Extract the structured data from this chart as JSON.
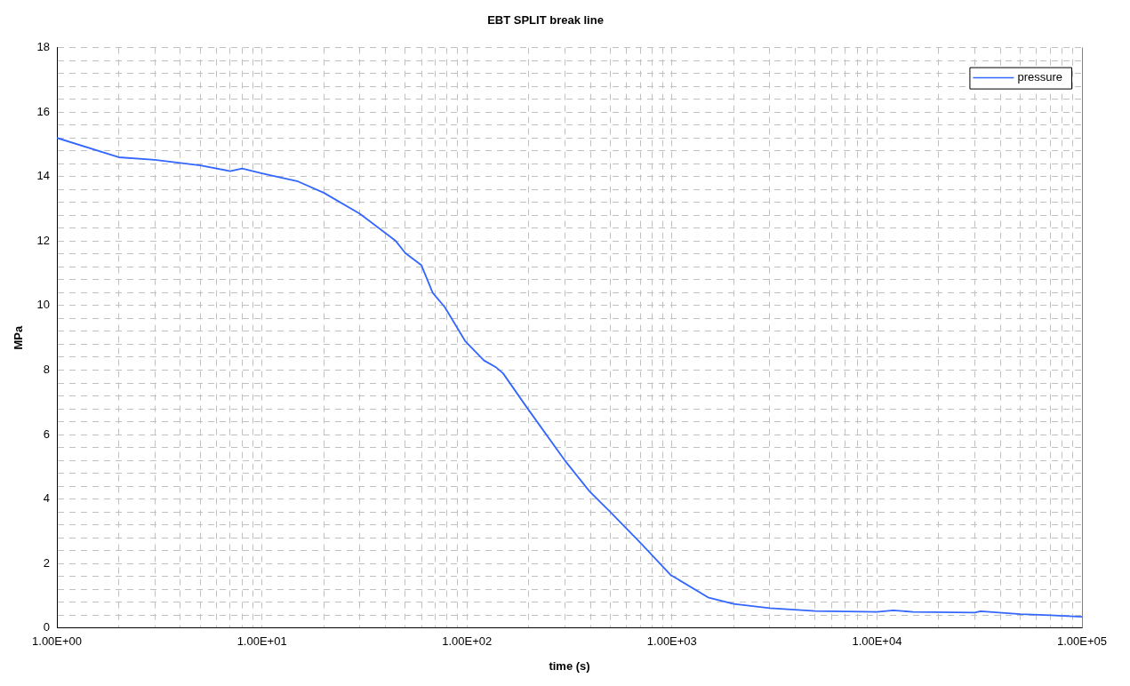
{
  "chart_data": {
    "type": "line",
    "title": "EBT SPLIT break line",
    "xlabel": "time (s)",
    "ylabel": "MPa",
    "log": "x",
    "grid": true,
    "legend": "top right",
    "marker": "none",
    "line_style": "solid",
    "xlim": [
      1,
      100000
    ],
    "xticks": [
      {
        "value": 1,
        "label": "1.00E+00"
      },
      {
        "value": 2,
        "label": null
      },
      {
        "value": 3,
        "label": null
      },
      {
        "value": 4,
        "label": null
      },
      {
        "value": 5,
        "label": null
      },
      {
        "value": 6,
        "label": null
      },
      {
        "value": 7,
        "label": null
      },
      {
        "value": 8,
        "label": null
      },
      {
        "value": 9,
        "label": null
      },
      {
        "value": 10,
        "label": "1.00E+01"
      },
      {
        "value": 20,
        "label": null
      },
      {
        "value": 30,
        "label": null
      },
      {
        "value": 40,
        "label": null
      },
      {
        "value": 50,
        "label": null
      },
      {
        "value": 60,
        "label": null
      },
      {
        "value": 70,
        "label": null
      },
      {
        "value": 80,
        "label": null
      },
      {
        "value": 90,
        "label": null
      },
      {
        "value": 100,
        "label": "1.00E+02"
      },
      {
        "value": 200,
        "label": null
      },
      {
        "value": 300,
        "label": null
      },
      {
        "value": 400,
        "label": null
      },
      {
        "value": 500,
        "label": null
      },
      {
        "value": 600,
        "label": null
      },
      {
        "value": 700,
        "label": null
      },
      {
        "value": 800,
        "label": null
      },
      {
        "value": 900,
        "label": null
      },
      {
        "value": 1000,
        "label": "1.00E+03"
      },
      {
        "value": 2000,
        "label": null
      },
      {
        "value": 3000,
        "label": null
      },
      {
        "value": 4000,
        "label": null
      },
      {
        "value": 5000,
        "label": null
      },
      {
        "value": 6000,
        "label": null
      },
      {
        "value": 7000,
        "label": null
      },
      {
        "value": 8000,
        "label": null
      },
      {
        "value": 9000,
        "label": null
      },
      {
        "value": 10000,
        "label": "1.00E+04"
      },
      {
        "value": 20000,
        "label": null
      },
      {
        "value": 30000,
        "label": null
      },
      {
        "value": 40000,
        "label": null
      },
      {
        "value": 50000,
        "label": null
      },
      {
        "value": 60000,
        "label": null
      },
      {
        "value": 70000,
        "label": null
      },
      {
        "value": 80000,
        "label": null
      },
      {
        "value": 90000,
        "label": null
      },
      {
        "value": 100000,
        "label": "1.00E+05"
      }
    ],
    "ylim": [
      0,
      18
    ],
    "yticks": [
      0,
      {
        "value": 0.4,
        "label": null
      },
      {
        "value": 0.8,
        "label": null
      },
      {
        "value": 1.2,
        "label": null
      },
      {
        "value": 1.6,
        "label": null
      },
      2,
      {
        "value": 2.4,
        "label": null
      },
      {
        "value": 2.8,
        "label": null
      },
      {
        "value": 3.2,
        "label": null
      },
      {
        "value": 3.6,
        "label": null
      },
      4,
      {
        "value": 4.4,
        "label": null
      },
      {
        "value": 4.8,
        "label": null
      },
      {
        "value": 5.2,
        "label": null
      },
      {
        "value": 5.6,
        "label": null
      },
      6,
      {
        "value": 6.4,
        "label": null
      },
      {
        "value": 6.8,
        "label": null
      },
      {
        "value": 7.2,
        "label": null
      },
      {
        "value": 7.6,
        "label": null
      },
      8,
      {
        "value": 8.4,
        "label": null
      },
      {
        "value": 8.8,
        "label": null
      },
      {
        "value": 9.2,
        "label": null
      },
      {
        "value": 9.6,
        "label": null
      },
      10,
      {
        "value": 10.4,
        "label": null
      },
      {
        "value": 10.8,
        "label": null
      },
      {
        "value": 11.2,
        "label": null
      },
      {
        "value": 11.6,
        "label": null
      },
      12,
      {
        "value": 12.4,
        "label": null
      },
      {
        "value": 12.8,
        "label": null
      },
      {
        "value": 13.2,
        "label": null
      },
      {
        "value": 13.6,
        "label": null
      },
      14,
      {
        "value": 14.4,
        "label": null
      },
      {
        "value": 14.8,
        "label": null
      },
      {
        "value": 15.2,
        "label": null
      },
      {
        "value": 15.6,
        "label": null
      },
      16,
      {
        "value": 16.4,
        "label": null
      },
      {
        "value": 16.8,
        "label": null
      },
      {
        "value": 17.2,
        "label": null
      },
      {
        "value": 17.6,
        "label": null
      },
      18
    ],
    "x": [
      1,
      2,
      3,
      5,
      7,
      8,
      10,
      15,
      20,
      30,
      40,
      45,
      50,
      60,
      68,
      78,
      98,
      121,
      139,
      150,
      194,
      300,
      395,
      500,
      700,
      984,
      1500,
      2000,
      3000,
      5000,
      10000,
      12000,
      15000,
      30000,
      32000,
      50000,
      70000,
      100000
    ],
    "series": [
      {
        "name": "pressure",
        "color": "#3366ff",
        "values": [
          15.2,
          14.6,
          14.52,
          14.35,
          14.17,
          14.25,
          14.1,
          13.85,
          13.5,
          12.85,
          12.25,
          12.0,
          11.63,
          11.25,
          10.4,
          9.95,
          8.9,
          8.3,
          8.08,
          7.9,
          6.88,
          5.2,
          4.25,
          3.6,
          2.65,
          1.65,
          0.95,
          0.75,
          0.62,
          0.53,
          0.5,
          0.55,
          0.5,
          0.48,
          0.52,
          0.43,
          0.4,
          0.35
        ]
      }
    ]
  }
}
